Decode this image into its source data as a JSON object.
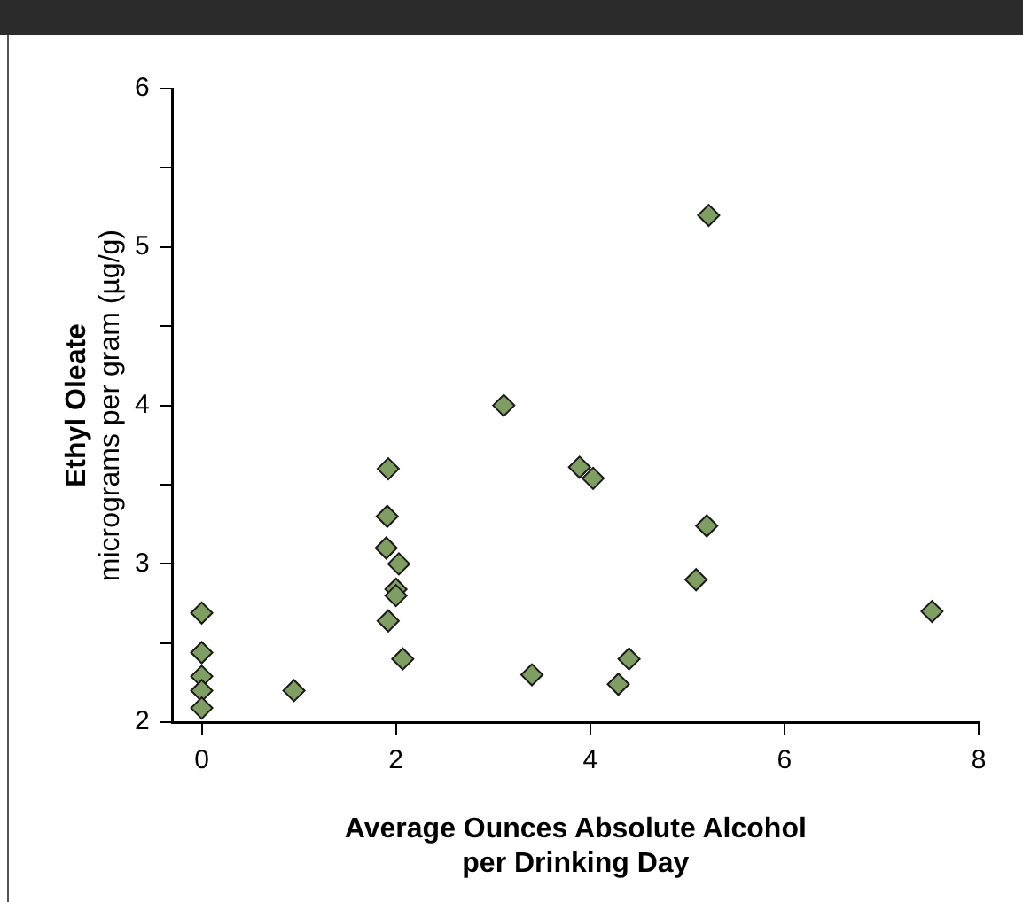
{
  "chart_data": {
    "type": "scatter",
    "xlabel": "Average Ounces Absolute Alcohol\nper Drinking Day",
    "ylabel": "Ethyl Oleate\nmicrograms per gram (µg/g)",
    "x": [
      0,
      0,
      0,
      0,
      0,
      0.95,
      1.92,
      1.91,
      1.9,
      2.03,
      2.0,
      2.0,
      1.92,
      2.07,
      3.11,
      3.4,
      5.22,
      3.89,
      4.03,
      5.2,
      5.09,
      7.52,
      4.4,
      4.29
    ],
    "series": [
      {
        "color": "#7f9f62",
        "values": [
          2.69,
          2.44,
          2.29,
          2.2,
          2.09,
          2.2,
          3.6,
          3.3,
          3.1,
          3.0,
          2.84,
          2.8,
          2.64,
          2.4,
          4.0,
          2.3,
          5.2,
          3.61,
          3.54,
          3.24,
          2.9,
          2.7,
          2.4,
          2.24
        ]
      }
    ],
    "xlim": [
      -0.3,
      8
    ],
    "xticks": [
      0,
      2,
      4,
      6,
      8
    ],
    "ylim": [
      2,
      6
    ],
    "yticks": [
      2,
      {
        "value": 2.5,
        "label": null
      },
      3,
      {
        "value": 3.5,
        "label": null
      },
      4,
      {
        "value": 4.5,
        "label": null
      },
      5,
      {
        "value": 5.5,
        "label": null
      },
      6
    ],
    "grid": false,
    "legend": false,
    "marker": "diamond"
  }
}
